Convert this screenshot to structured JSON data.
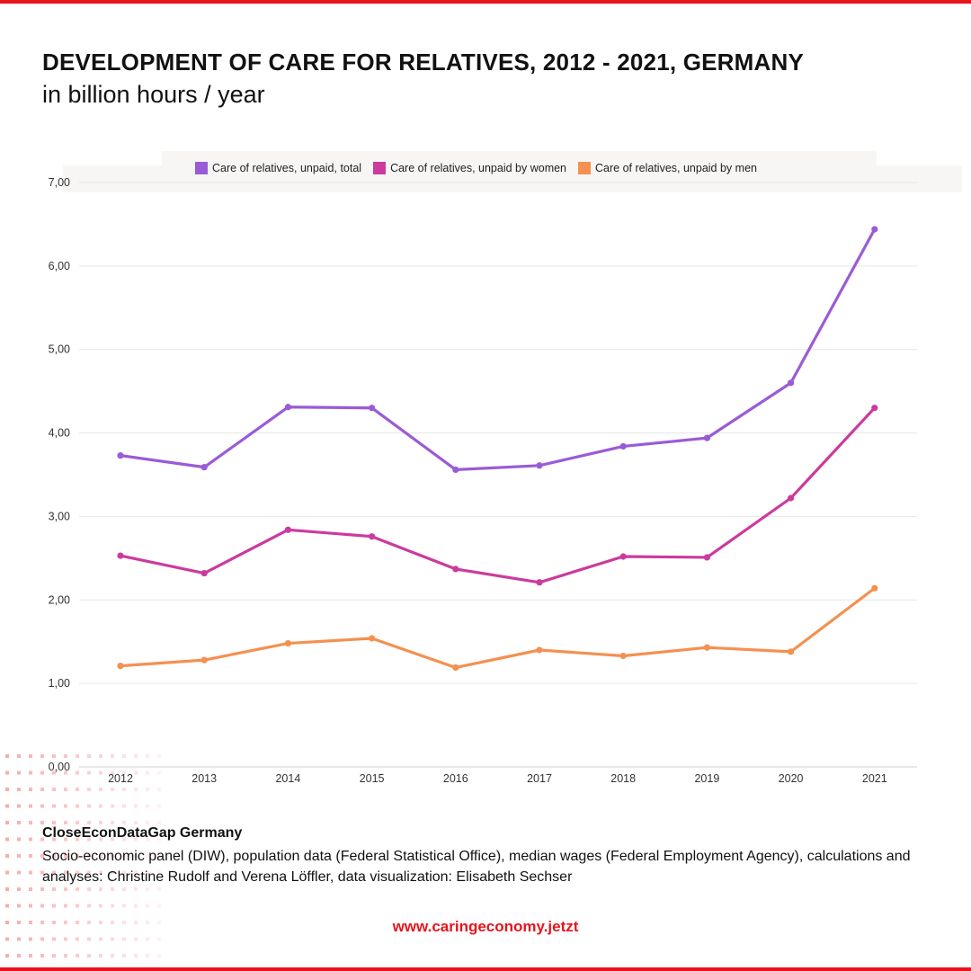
{
  "header": {
    "title": "DEVELOPMENT OF CARE FOR RELATIVES, 2012 - 2021, GERMANY",
    "subtitle": "in billion hours / year"
  },
  "chart_data": {
    "type": "line",
    "title": "DEVELOPMENT OF CARE FOR RELATIVES, 2012 - 2021, GERMANY",
    "subtitle": "in billion hours / year",
    "xlabel": "",
    "ylabel": "",
    "categories": [
      "2012",
      "2013",
      "2014",
      "2015",
      "2016",
      "2017",
      "2018",
      "2019",
      "2020",
      "2021"
    ],
    "ylim": [
      0,
      7
    ],
    "yticks": [
      "0,00",
      "1,00",
      "2,00",
      "3,00",
      "4,00",
      "5,00",
      "6,00",
      "7,00"
    ],
    "grid": true,
    "legend_position": "top",
    "series": [
      {
        "name": "Care of relatives, unpaid, total",
        "color": "#9a5bd6",
        "values": [
          3.73,
          3.59,
          4.31,
          4.3,
          3.56,
          3.61,
          3.84,
          3.94,
          4.6,
          6.44
        ]
      },
      {
        "name": "Care of relatives, unpaid by women",
        "color": "#cc3a9e",
        "values": [
          2.53,
          2.32,
          2.84,
          2.76,
          2.37,
          2.21,
          2.52,
          2.51,
          3.22,
          4.3
        ]
      },
      {
        "name": "Care of relatives, unpaid by men",
        "color": "#f49050",
        "values": [
          1.21,
          1.28,
          1.48,
          1.54,
          1.19,
          1.4,
          1.33,
          1.43,
          1.38,
          2.14
        ]
      }
    ]
  },
  "footer": {
    "source_title": "CloseEconDataGap Germany",
    "source_text": "Socio-economic panel (DIW), population data (Federal Statistical Office), median wages (Federal Employment Agency), calculations and analyses: Christine Rudolf and Verena Löffler, data visualization: Elisabeth Sechser",
    "url": "www.caringeconomy.jetzt"
  },
  "colors": {
    "accent": "#e8141c",
    "grid": "#e6e6e6",
    "axis_text": "#333333"
  }
}
